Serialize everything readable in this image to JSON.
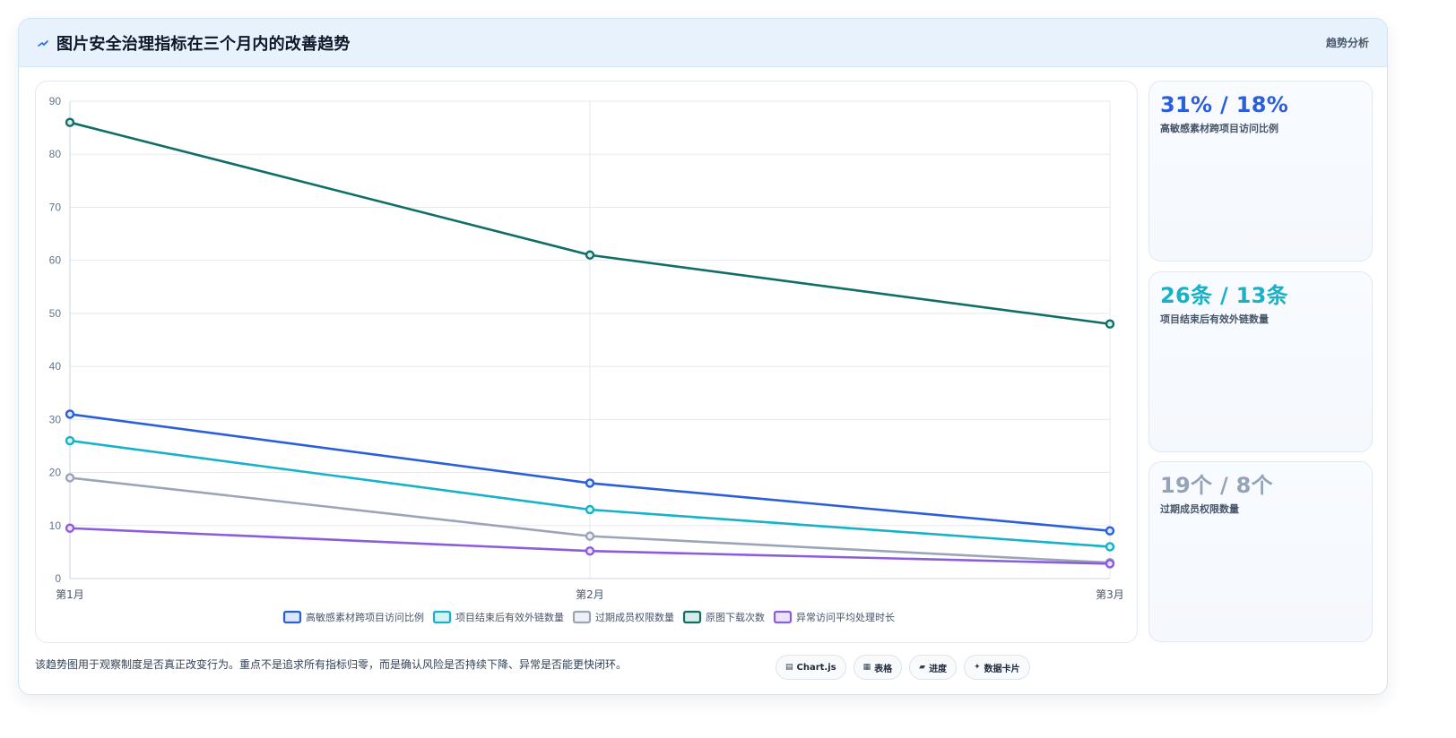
{
  "header": {
    "title": "图片安全治理指标在三个月内的改善趋势",
    "tag": "趋势分析",
    "icon": "bolt-icon"
  },
  "chart_data": {
    "type": "line",
    "categories": [
      "第1月",
      "第2月",
      "第3月"
    ],
    "ylim": [
      0,
      90
    ],
    "yticks": [
      0,
      10,
      20,
      30,
      40,
      50,
      60,
      70,
      80,
      90
    ],
    "grid": true,
    "legend_position": "bottom",
    "series": [
      {
        "name": "高敏感素材跨项目访问比例",
        "values": [
          31,
          18,
          9
        ],
        "color": "#2b5fd9",
        "fill": "#dbe7fb"
      },
      {
        "name": "项目结束后有效外链数量",
        "values": [
          26,
          13,
          6
        ],
        "color": "#16b2c8",
        "fill": "#d4f3f7"
      },
      {
        "name": "过期成员权限数量",
        "values": [
          19,
          8,
          3
        ],
        "color": "#9aa6b8",
        "fill": "#eef1f5"
      },
      {
        "name": "原图下载次数",
        "values": [
          86,
          61,
          48
        ],
        "color": "#0f6e66",
        "fill": "#d7ece9"
      },
      {
        "name": "异常访问平均处理时长",
        "values": [
          9.5,
          5.2,
          2.8
        ],
        "color": "#8b5cdb",
        "fill": "#ece3fa"
      }
    ]
  },
  "side_cards": [
    {
      "value": "31% / 18%",
      "label": "高敏感素材跨项目访问比例",
      "color": "#2b5fd9"
    },
    {
      "value": "26条 / 13条",
      "label": "项目结束后有效外链数量",
      "color": "#16b2c8"
    },
    {
      "value": "19个 / 8个",
      "label": "过期成员权限数量",
      "color": "#94a3b8"
    }
  ],
  "footnote": "该趋势图用于观察制度是否真正改变行为。重点不是追求所有指标归零，而是确认风险是否持续下降、异常是否能更快闭环。",
  "chips": [
    {
      "label": "Chart.js",
      "icon": "chart-icon",
      "glyph": "▤"
    },
    {
      "label": "表格",
      "icon": "table-icon",
      "glyph": "▦"
    },
    {
      "label": "进度",
      "icon": "progress-icon",
      "glyph": "▰"
    },
    {
      "label": "数据卡片",
      "icon": "card-icon",
      "glyph": "✦"
    }
  ]
}
